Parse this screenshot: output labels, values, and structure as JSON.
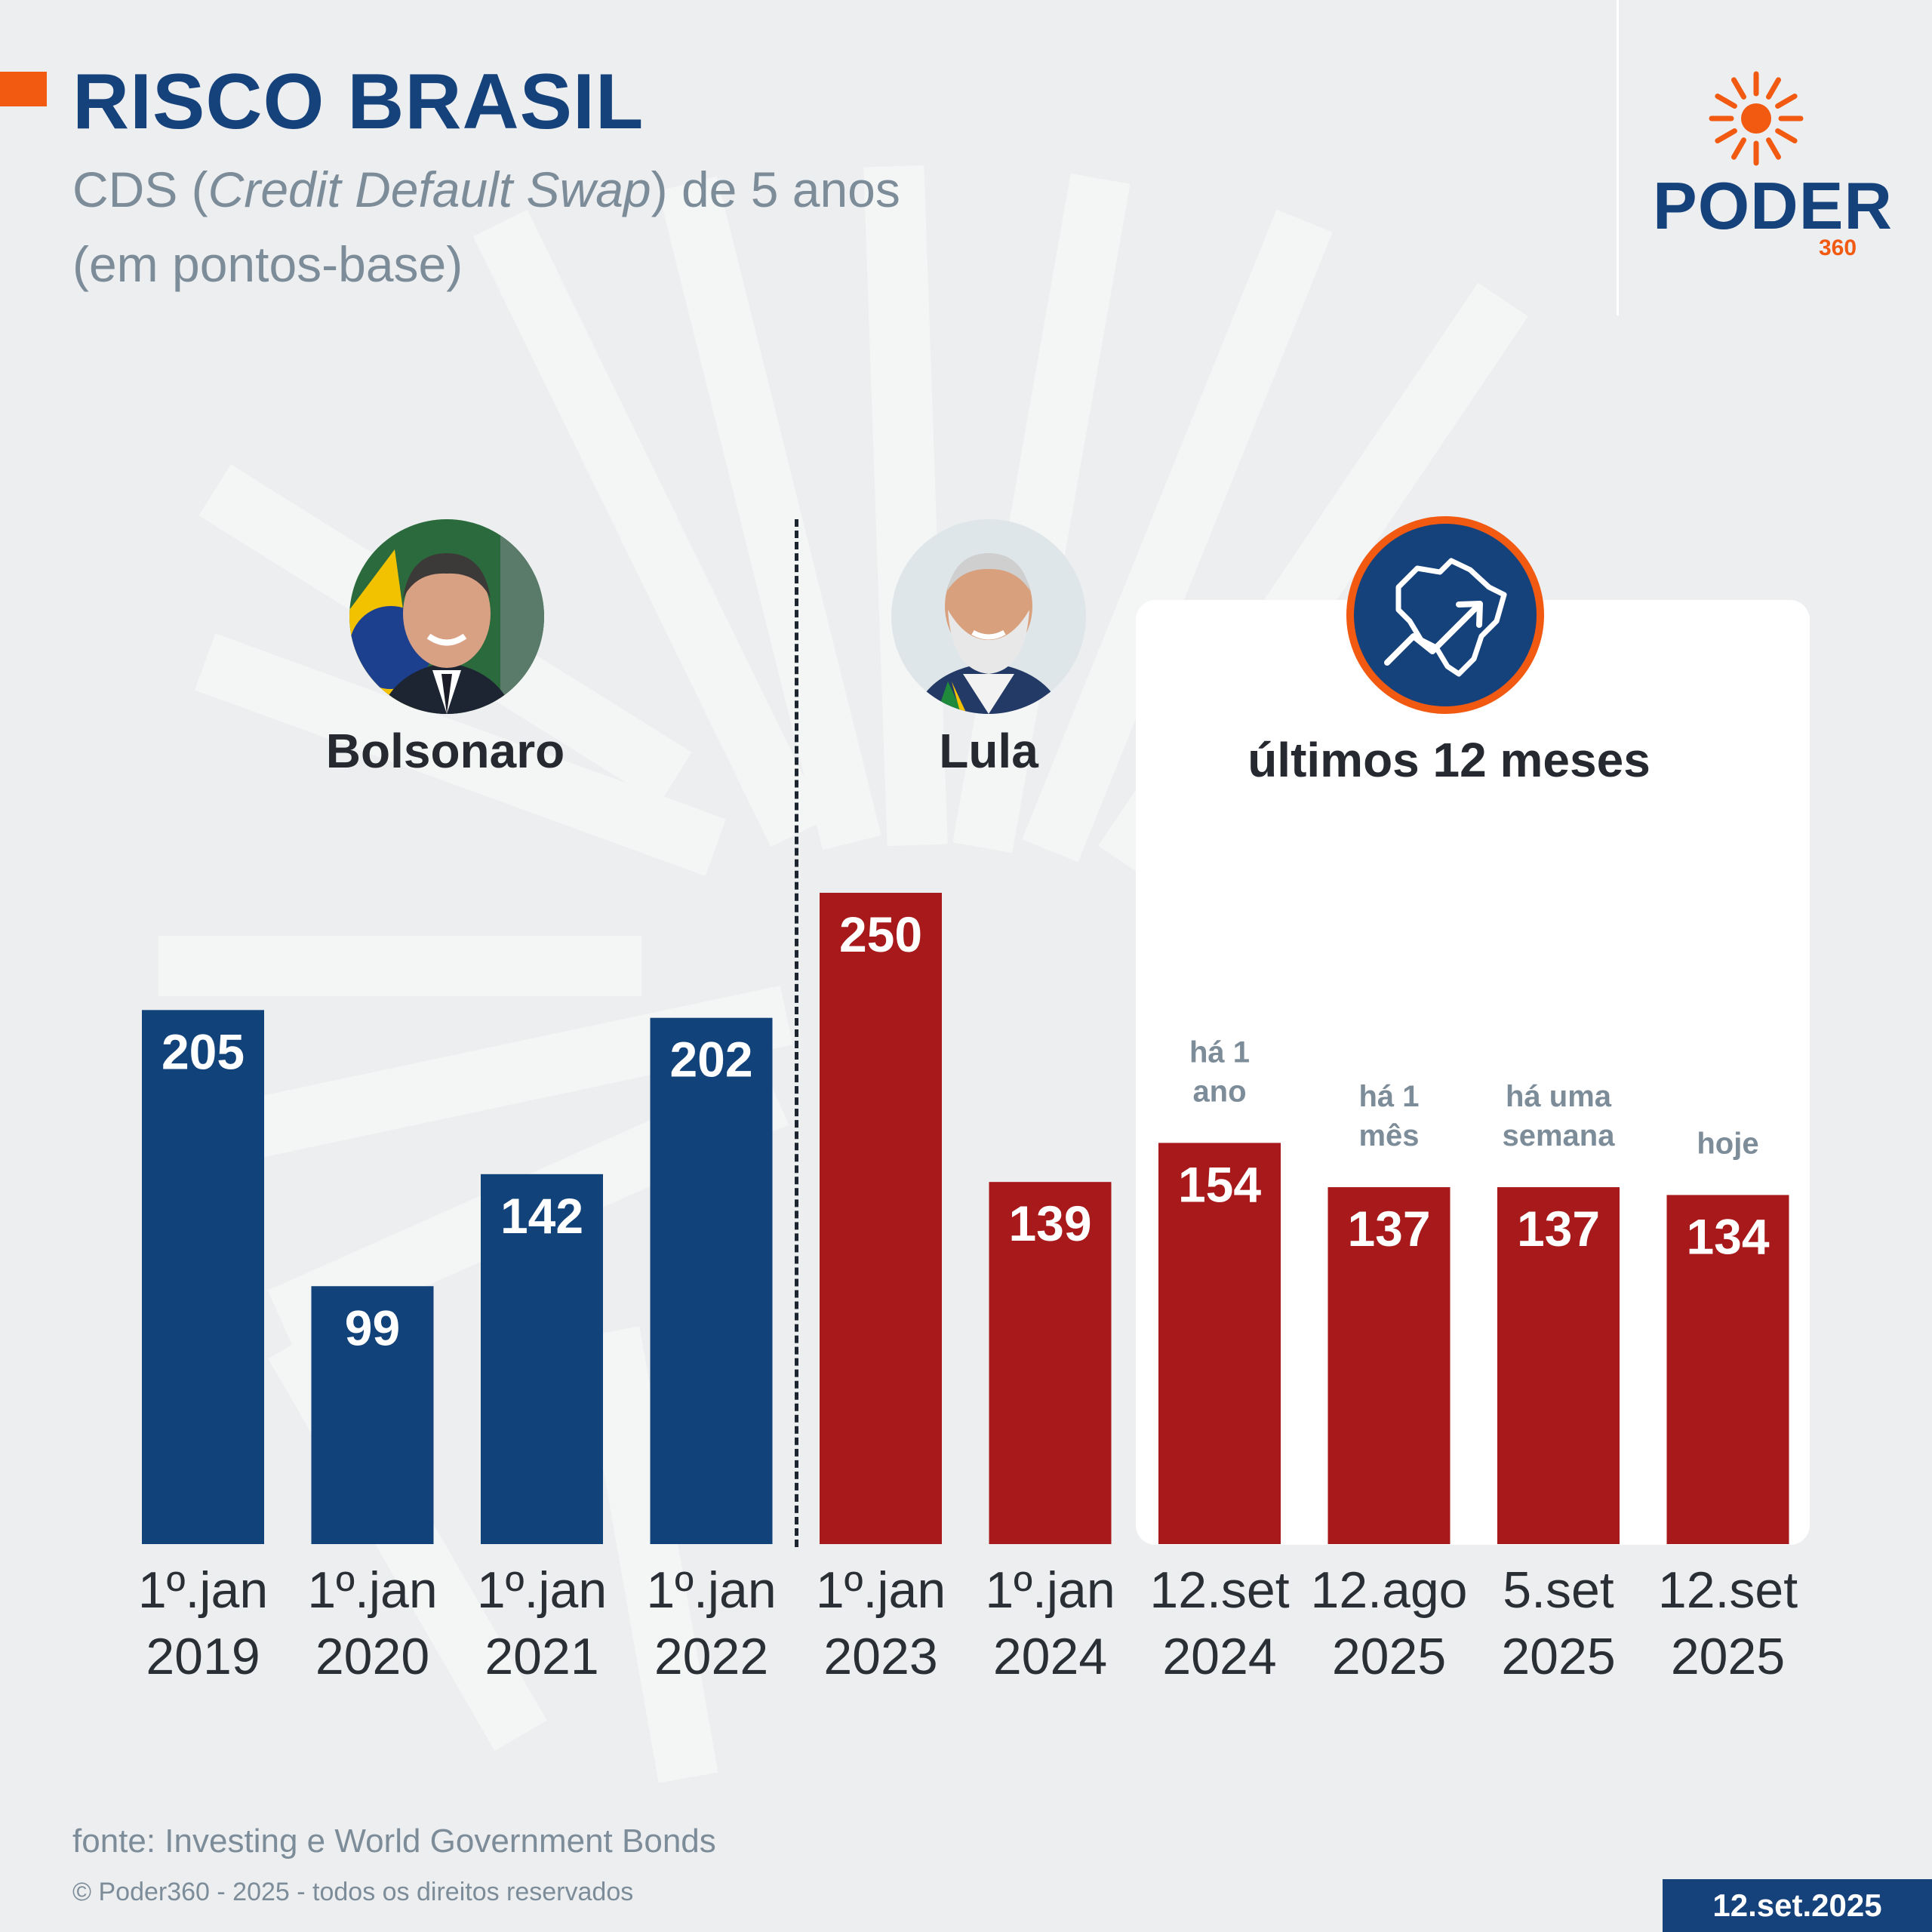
{
  "header": {
    "title": "RISCO BRASIL",
    "subtitle_pre": "CDS (",
    "subtitle_em": "Credit Default Swap",
    "subtitle_post": ") de 5 anos",
    "subtitle_line2": "(em pontos-base)"
  },
  "logo": {
    "word": "PODER",
    "number": "360"
  },
  "leaders": {
    "bolsonaro": "Bolsonaro",
    "lula": "Lula",
    "recent": "últimos 12 meses"
  },
  "footer": {
    "source": "fonte: Investing e World Government Bonds",
    "copyright": "© Poder360 - 2025 - todos os direitos reservados",
    "date": "12.set.2025"
  },
  "colors": {
    "bolsonaro": "#12427a",
    "lula": "#a7191a",
    "accent": "#f25a12",
    "brand": "#16427c"
  },
  "chart_data": {
    "type": "bar",
    "title": "RISCO BRASIL",
    "subtitle": "CDS (Credit Default Swap) de 5 anos (em pontos-base)",
    "categories": [
      [
        "1º.jan",
        "2019"
      ],
      [
        "1º.jan",
        "2020"
      ],
      [
        "1º.jan",
        "2021"
      ],
      [
        "1º.jan",
        "2022"
      ],
      [
        "1º.jan",
        "2023"
      ],
      [
        "1º.jan",
        "2024"
      ],
      [
        "12.set",
        "2024"
      ],
      [
        "12.ago",
        "2025"
      ],
      [
        "5.set",
        "2025"
      ],
      [
        "12.set",
        "2025"
      ]
    ],
    "values": [
      205,
      99,
      142,
      202,
      250,
      139,
      154,
      137,
      137,
      134
    ],
    "groups": [
      "Bolsonaro",
      "Bolsonaro",
      "Bolsonaro",
      "Bolsonaro",
      "Lula",
      "Lula",
      "Lula",
      "Lula",
      "Lula",
      "Lula"
    ],
    "annotations": [
      {
        "index": 6,
        "lines": [
          "há 1",
          "ano"
        ]
      },
      {
        "index": 7,
        "lines": [
          "há 1",
          "mês"
        ]
      },
      {
        "index": 8,
        "lines": [
          "há uma",
          "semana"
        ]
      },
      {
        "index": 9,
        "lines": [
          "hoje"
        ]
      }
    ],
    "ylim": [
      0,
      250
    ],
    "grid": false,
    "legend": "none"
  }
}
